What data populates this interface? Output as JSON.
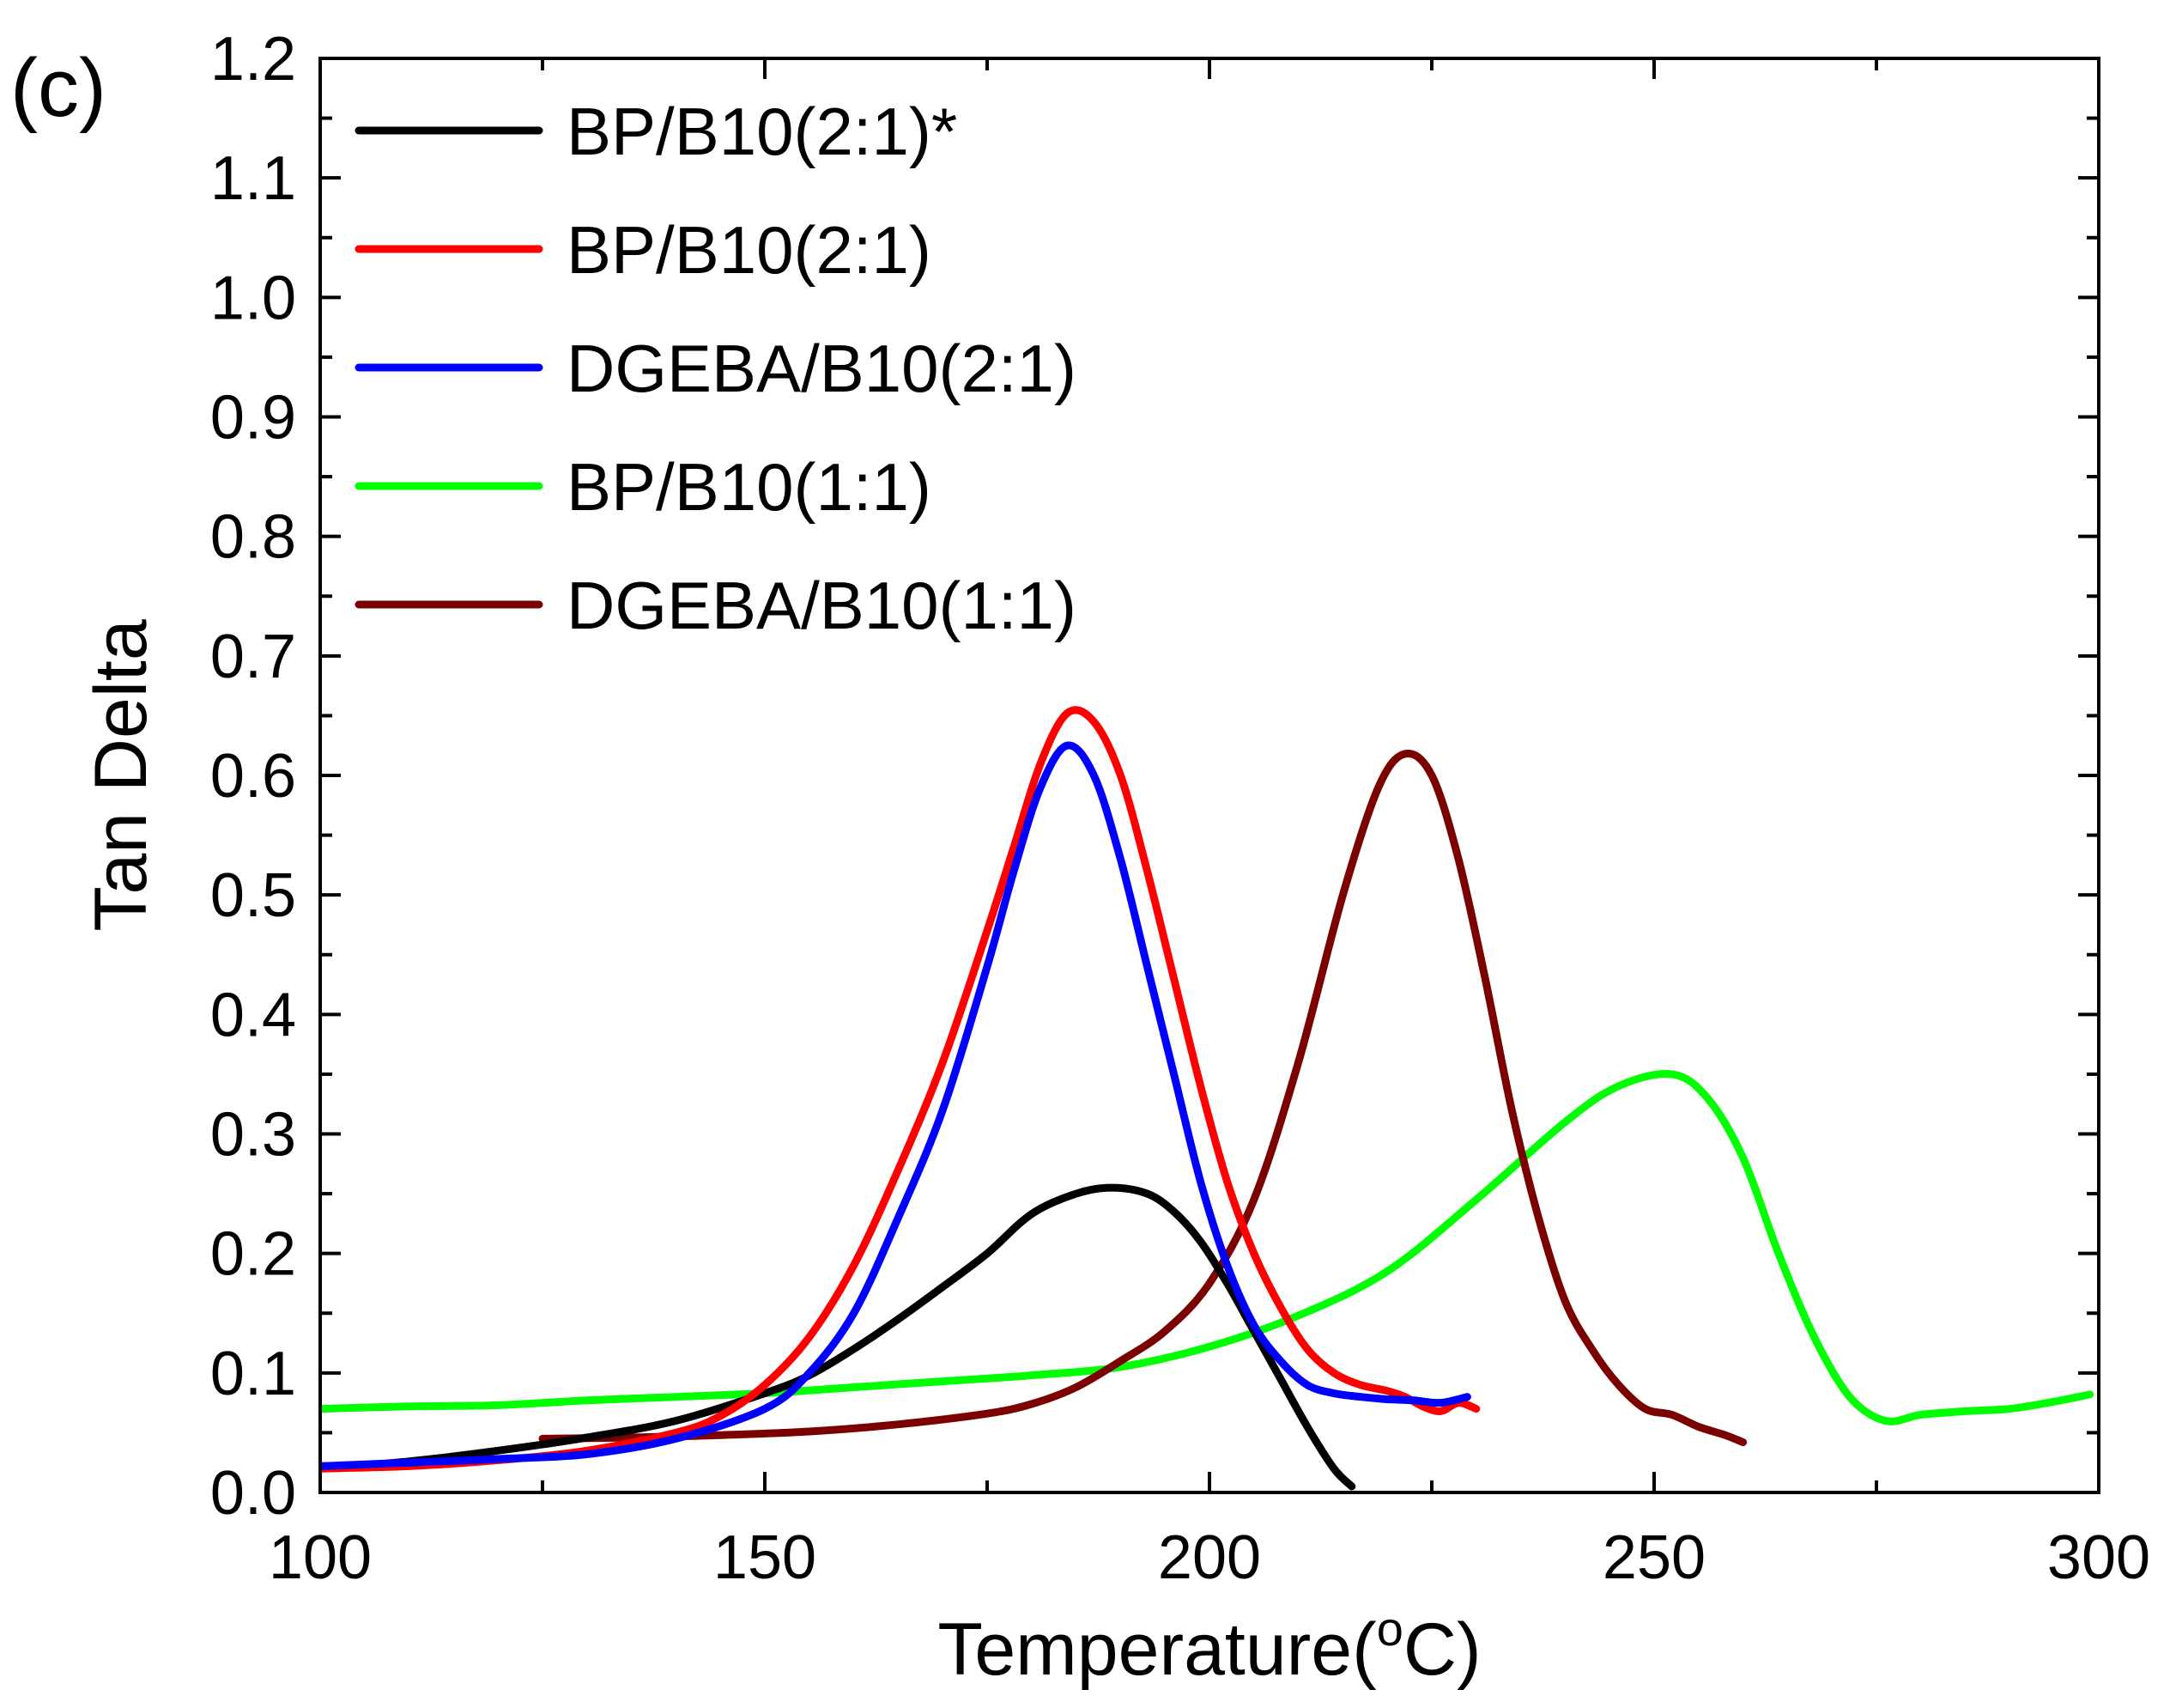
{
  "chart_data": {
    "type": "line",
    "panel_label": "(c)",
    "xlabel": {
      "main": "Temperature(",
      "superscript": "o",
      "unit": "C)"
    },
    "ylabel": "Tan Delta",
    "xlim": [
      100,
      300
    ],
    "ylim": [
      0.0,
      1.2
    ],
    "xticks": [
      100,
      150,
      200,
      250,
      300
    ],
    "xtick_labels": [
      "100",
      "150",
      "200",
      "250",
      "300"
    ],
    "yticks": [
      0.0,
      0.1,
      0.2,
      0.3,
      0.4,
      0.5,
      0.6,
      0.7,
      0.8,
      0.9,
      1.0,
      1.1,
      1.2
    ],
    "ytick_labels": [
      "0.0",
      "0.1",
      "0.2",
      "0.3",
      "0.4",
      "0.5",
      "0.6",
      "0.7",
      "0.8",
      "0.9",
      "1.0",
      "1.1",
      "1.2"
    ],
    "grid": false,
    "legend_position": "top-left",
    "series": [
      {
        "name": "BP/B10(2:1)*",
        "color": "#000000",
        "x": [
          100,
          110,
          120,
          130,
          140,
          150,
          155,
          160,
          165,
          170,
          175,
          180,
          185,
          189,
          193,
          196,
          199,
          202,
          205,
          208,
          211,
          214,
          216
        ],
        "y": [
          0.02,
          0.026,
          0.035,
          0.046,
          0.06,
          0.083,
          0.098,
          0.12,
          0.145,
          0.172,
          0.2,
          0.233,
          0.25,
          0.255,
          0.25,
          0.235,
          0.21,
          0.175,
          0.135,
          0.095,
          0.055,
          0.02,
          0.005
        ]
      },
      {
        "name": "BP/B10(2:1)",
        "color": "#ff0000",
        "x": [
          100,
          110,
          120,
          130,
          140,
          145,
          150,
          155,
          160,
          165,
          170,
          175,
          178,
          181,
          184,
          187,
          190,
          193,
          196,
          199,
          202,
          205,
          208,
          211,
          214,
          217,
          220,
          222,
          224,
          226,
          228,
          230
        ],
        "y": [
          0.02,
          0.022,
          0.027,
          0.035,
          0.05,
          0.064,
          0.09,
          0.13,
          0.19,
          0.27,
          0.36,
          0.47,
          0.54,
          0.61,
          0.652,
          0.645,
          0.6,
          0.52,
          0.43,
          0.34,
          0.26,
          0.2,
          0.155,
          0.12,
          0.1,
          0.09,
          0.085,
          0.08,
          0.072,
          0.068,
          0.075,
          0.07
        ]
      },
      {
        "name": "DGEBA/B10(2:1)",
        "color": "#0000ff",
        "x": [
          100,
          110,
          120,
          130,
          140,
          150,
          155,
          160,
          165,
          170,
          175,
          178,
          181,
          184,
          187,
          190,
          193,
          196,
          199,
          202,
          205,
          208,
          211,
          214,
          217,
          220,
          223,
          226,
          229
        ],
        "y": [
          0.022,
          0.025,
          0.028,
          0.032,
          0.045,
          0.07,
          0.1,
          0.15,
          0.23,
          0.32,
          0.44,
          0.52,
          0.59,
          0.625,
          0.6,
          0.53,
          0.44,
          0.35,
          0.26,
          0.19,
          0.14,
          0.11,
          0.09,
          0.083,
          0.08,
          0.078,
          0.077,
          0.075,
          0.08
        ]
      },
      {
        "name": "BP/B10(1:1)",
        "color": "#00ff00",
        "x": [
          100,
          110,
          120,
          130,
          140,
          150,
          160,
          170,
          180,
          190,
          200,
          210,
          220,
          230,
          240,
          246,
          252,
          256,
          260,
          264,
          268,
          272,
          276,
          280,
          285,
          290,
          295,
          299
        ],
        "y": [
          0.07,
          0.072,
          0.073,
          0.077,
          0.08,
          0.083,
          0.088,
          0.093,
          0.098,
          0.105,
          0.122,
          0.148,
          0.185,
          0.245,
          0.31,
          0.34,
          0.35,
          0.33,
          0.28,
          0.2,
          0.13,
          0.08,
          0.06,
          0.065,
          0.068,
          0.07,
          0.076,
          0.082
        ]
      },
      {
        "name": "DGEBA/B10(1:1)",
        "color": "#7b0000",
        "x": [
          125,
          135,
          145,
          155,
          165,
          175,
          180,
          185,
          190,
          195,
          200,
          205,
          210,
          215,
          219,
          222,
          225,
          228,
          231,
          234,
          237,
          240,
          243,
          246,
          249,
          252,
          255,
          258,
          260
        ],
        "y": [
          0.045,
          0.046,
          0.048,
          0.051,
          0.057,
          0.066,
          0.074,
          0.088,
          0.11,
          0.135,
          0.175,
          0.245,
          0.36,
          0.5,
          0.59,
          0.618,
          0.6,
          0.53,
          0.43,
          0.32,
          0.23,
          0.16,
          0.12,
          0.09,
          0.07,
          0.065,
          0.055,
          0.048,
          0.042
        ]
      }
    ]
  }
}
